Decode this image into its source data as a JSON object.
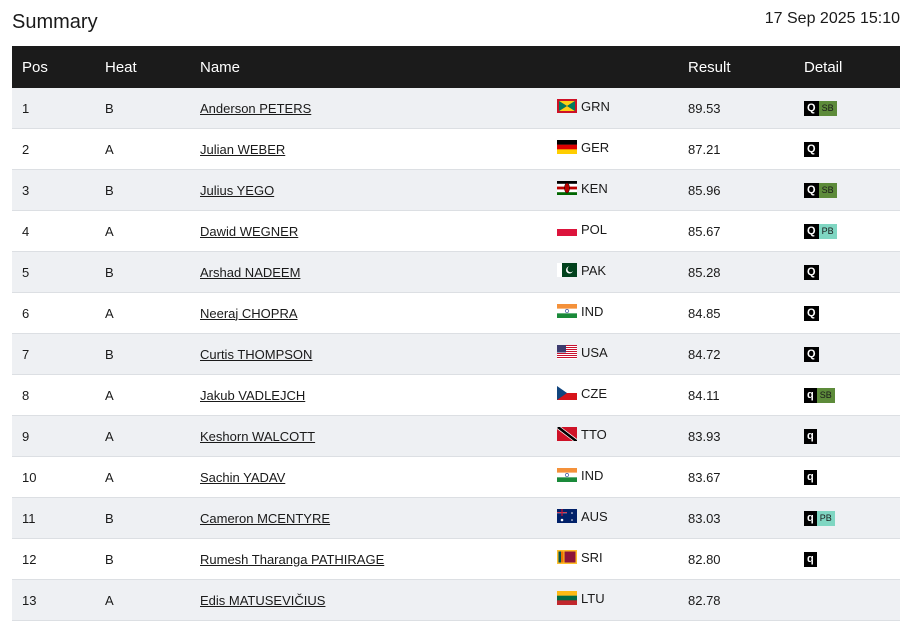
{
  "header": {
    "title": "Summary",
    "date": "17 Sep 2025 15:10"
  },
  "table": {
    "columns": [
      "Pos",
      "Heat",
      "Name",
      "Result",
      "Detail"
    ],
    "rows": [
      {
        "pos": 1,
        "heat": "B",
        "name": "Anderson PETERS",
        "country": "GRN",
        "result": "89.53",
        "detail": [
          "Q",
          "SB"
        ]
      },
      {
        "pos": 2,
        "heat": "A",
        "name": "Julian WEBER",
        "country": "GER",
        "result": "87.21",
        "detail": [
          "Q"
        ]
      },
      {
        "pos": 3,
        "heat": "B",
        "name": "Julius YEGO",
        "country": "KEN",
        "result": "85.96",
        "detail": [
          "Q",
          "SB"
        ]
      },
      {
        "pos": 4,
        "heat": "A",
        "name": "Dawid WEGNER",
        "country": "POL",
        "result": "85.67",
        "detail": [
          "Q",
          "PB"
        ]
      },
      {
        "pos": 5,
        "heat": "B",
        "name": "Arshad NADEEM",
        "country": "PAK",
        "result": "85.28",
        "detail": [
          "Q"
        ]
      },
      {
        "pos": 6,
        "heat": "A",
        "name": "Neeraj CHOPRA",
        "country": "IND",
        "result": "84.85",
        "detail": [
          "Q"
        ]
      },
      {
        "pos": 7,
        "heat": "B",
        "name": "Curtis THOMPSON",
        "country": "USA",
        "result": "84.72",
        "detail": [
          "Q"
        ]
      },
      {
        "pos": 8,
        "heat": "A",
        "name": "Jakub VADLEJCH",
        "country": "CZE",
        "result": "84.11",
        "detail": [
          "q",
          "SB"
        ]
      },
      {
        "pos": 9,
        "heat": "A",
        "name": "Keshorn WALCOTT",
        "country": "TTO",
        "result": "83.93",
        "detail": [
          "q"
        ]
      },
      {
        "pos": 10,
        "heat": "A",
        "name": "Sachin YADAV",
        "country": "IND",
        "result": "83.67",
        "detail": [
          "q"
        ]
      },
      {
        "pos": 11,
        "heat": "B",
        "name": "Cameron MCENTYRE",
        "country": "AUS",
        "result": "83.03",
        "detail": [
          "q",
          "PB"
        ]
      },
      {
        "pos": 12,
        "heat": "B",
        "name": "Rumesh Tharanga PATHIRAGE",
        "country": "SRI",
        "result": "82.80",
        "detail": [
          "q"
        ]
      },
      {
        "pos": 13,
        "heat": "A",
        "name": "Edis MATUSEVIČIUS",
        "country": "LTU",
        "result": "82.78",
        "detail": []
      }
    ]
  }
}
